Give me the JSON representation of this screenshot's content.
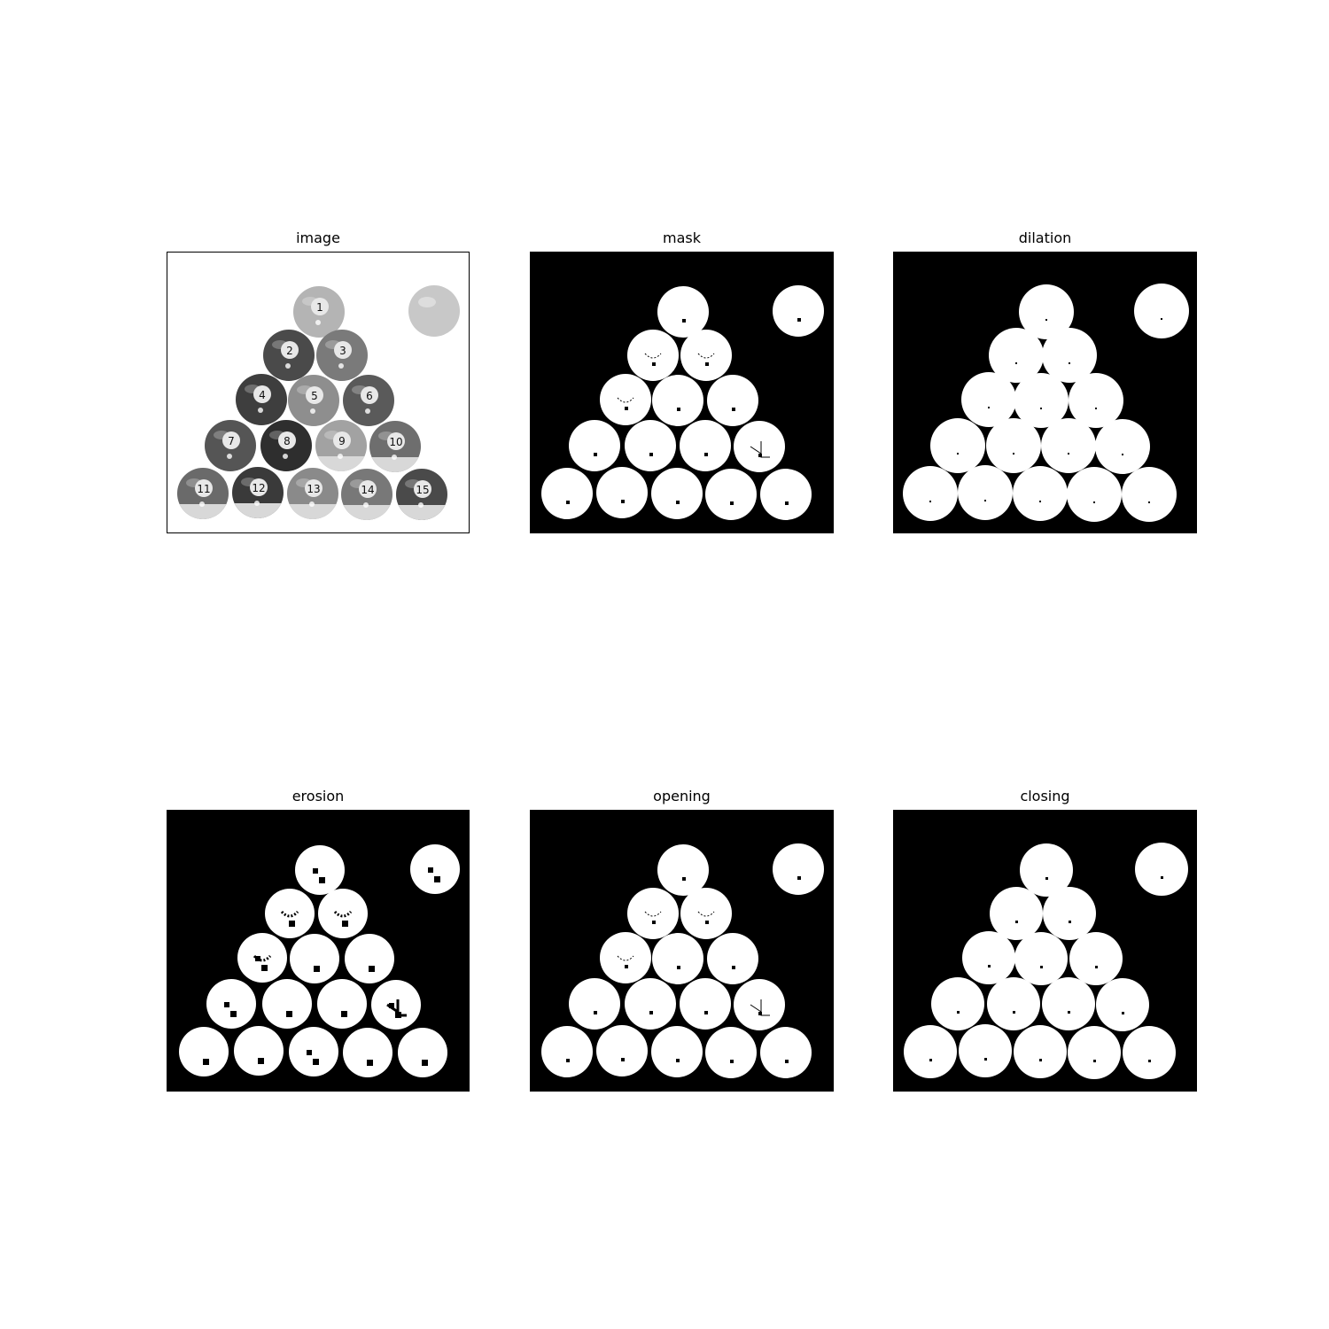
{
  "panels": [
    {
      "key": "image",
      "title": "image"
    },
    {
      "key": "mask",
      "title": "mask"
    },
    {
      "key": "dilation",
      "title": "dilation"
    },
    {
      "key": "erosion",
      "title": "erosion"
    },
    {
      "key": "opening",
      "title": "opening"
    },
    {
      "key": "closing",
      "title": "closing"
    }
  ],
  "balls": [
    {
      "label": "1",
      "shade": "#b4b4b4",
      "stripe": false
    },
    {
      "label": "2",
      "shade": "#4a4a4a",
      "stripe": false
    },
    {
      "label": "3",
      "shade": "#7a7a7a",
      "stripe": false
    },
    {
      "label": "4",
      "shade": "#3e3e3e",
      "stripe": false
    },
    {
      "label": "5",
      "shade": "#8e8e8e",
      "stripe": false
    },
    {
      "label": "6",
      "shade": "#5a5a5a",
      "stripe": false
    },
    {
      "label": "7",
      "shade": "#555555",
      "stripe": false
    },
    {
      "label": "8",
      "shade": "#2e2e2e",
      "stripe": false
    },
    {
      "label": "9",
      "shade": "#a2a2a2",
      "stripe": true
    },
    {
      "label": "10",
      "shade": "#6e6e6e",
      "stripe": true
    },
    {
      "label": "11",
      "shade": "#6a6a6a",
      "stripe": true
    },
    {
      "label": "12",
      "shade": "#3a3a3a",
      "stripe": true
    },
    {
      "label": "13",
      "shade": "#8a8a8a",
      "stripe": true
    },
    {
      "label": "14",
      "shade": "#787878",
      "stripe": true
    },
    {
      "label": "15",
      "shade": "#4a4a4a",
      "stripe": true
    }
  ],
  "cue_ball_shade": "#c8c8c8",
  "colors": {
    "mask_background": "#000000",
    "mask_foreground": "#ffffff",
    "image_background": "#ffffff",
    "frame": "#000000"
  }
}
